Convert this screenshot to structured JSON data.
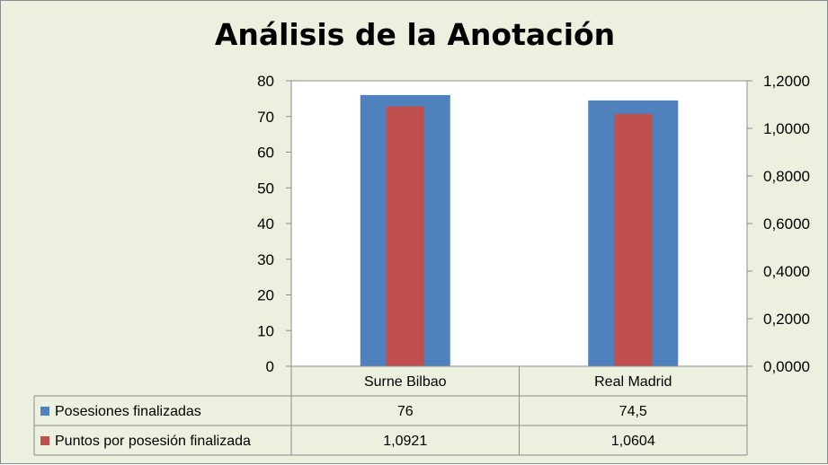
{
  "chart_data": {
    "type": "bar",
    "title": "Análisis de la Anotación",
    "categories": [
      "Surne Bilbao",
      "Real Madrid"
    ],
    "series": [
      {
        "name": "Posesiones finalizadas",
        "values": [
          76,
          74.5
        ],
        "value_labels": [
          "76",
          "74,5"
        ],
        "axis": "left",
        "color": "#4f81bd"
      },
      {
        "name": "Puntos por posesión finalizada",
        "values": [
          1.0921,
          1.0604
        ],
        "value_labels": [
          "1,0921",
          "1,0604"
        ],
        "axis": "right",
        "color": "#c0504d"
      }
    ],
    "y_left": {
      "min": 0,
      "max": 80,
      "step": 10,
      "ticks": [
        "0",
        "10",
        "20",
        "30",
        "40",
        "50",
        "60",
        "70",
        "80"
      ]
    },
    "y_right": {
      "min": 0,
      "max": 1.2,
      "step": 0.2,
      "ticks": [
        "0,0000",
        "0,2000",
        "0,4000",
        "0,6000",
        "0,8000",
        "1,0000",
        "1,2000"
      ]
    },
    "grid": false,
    "legend": "data-table",
    "plot_background": "#ffffff",
    "chart_background": "#ebf1de"
  }
}
